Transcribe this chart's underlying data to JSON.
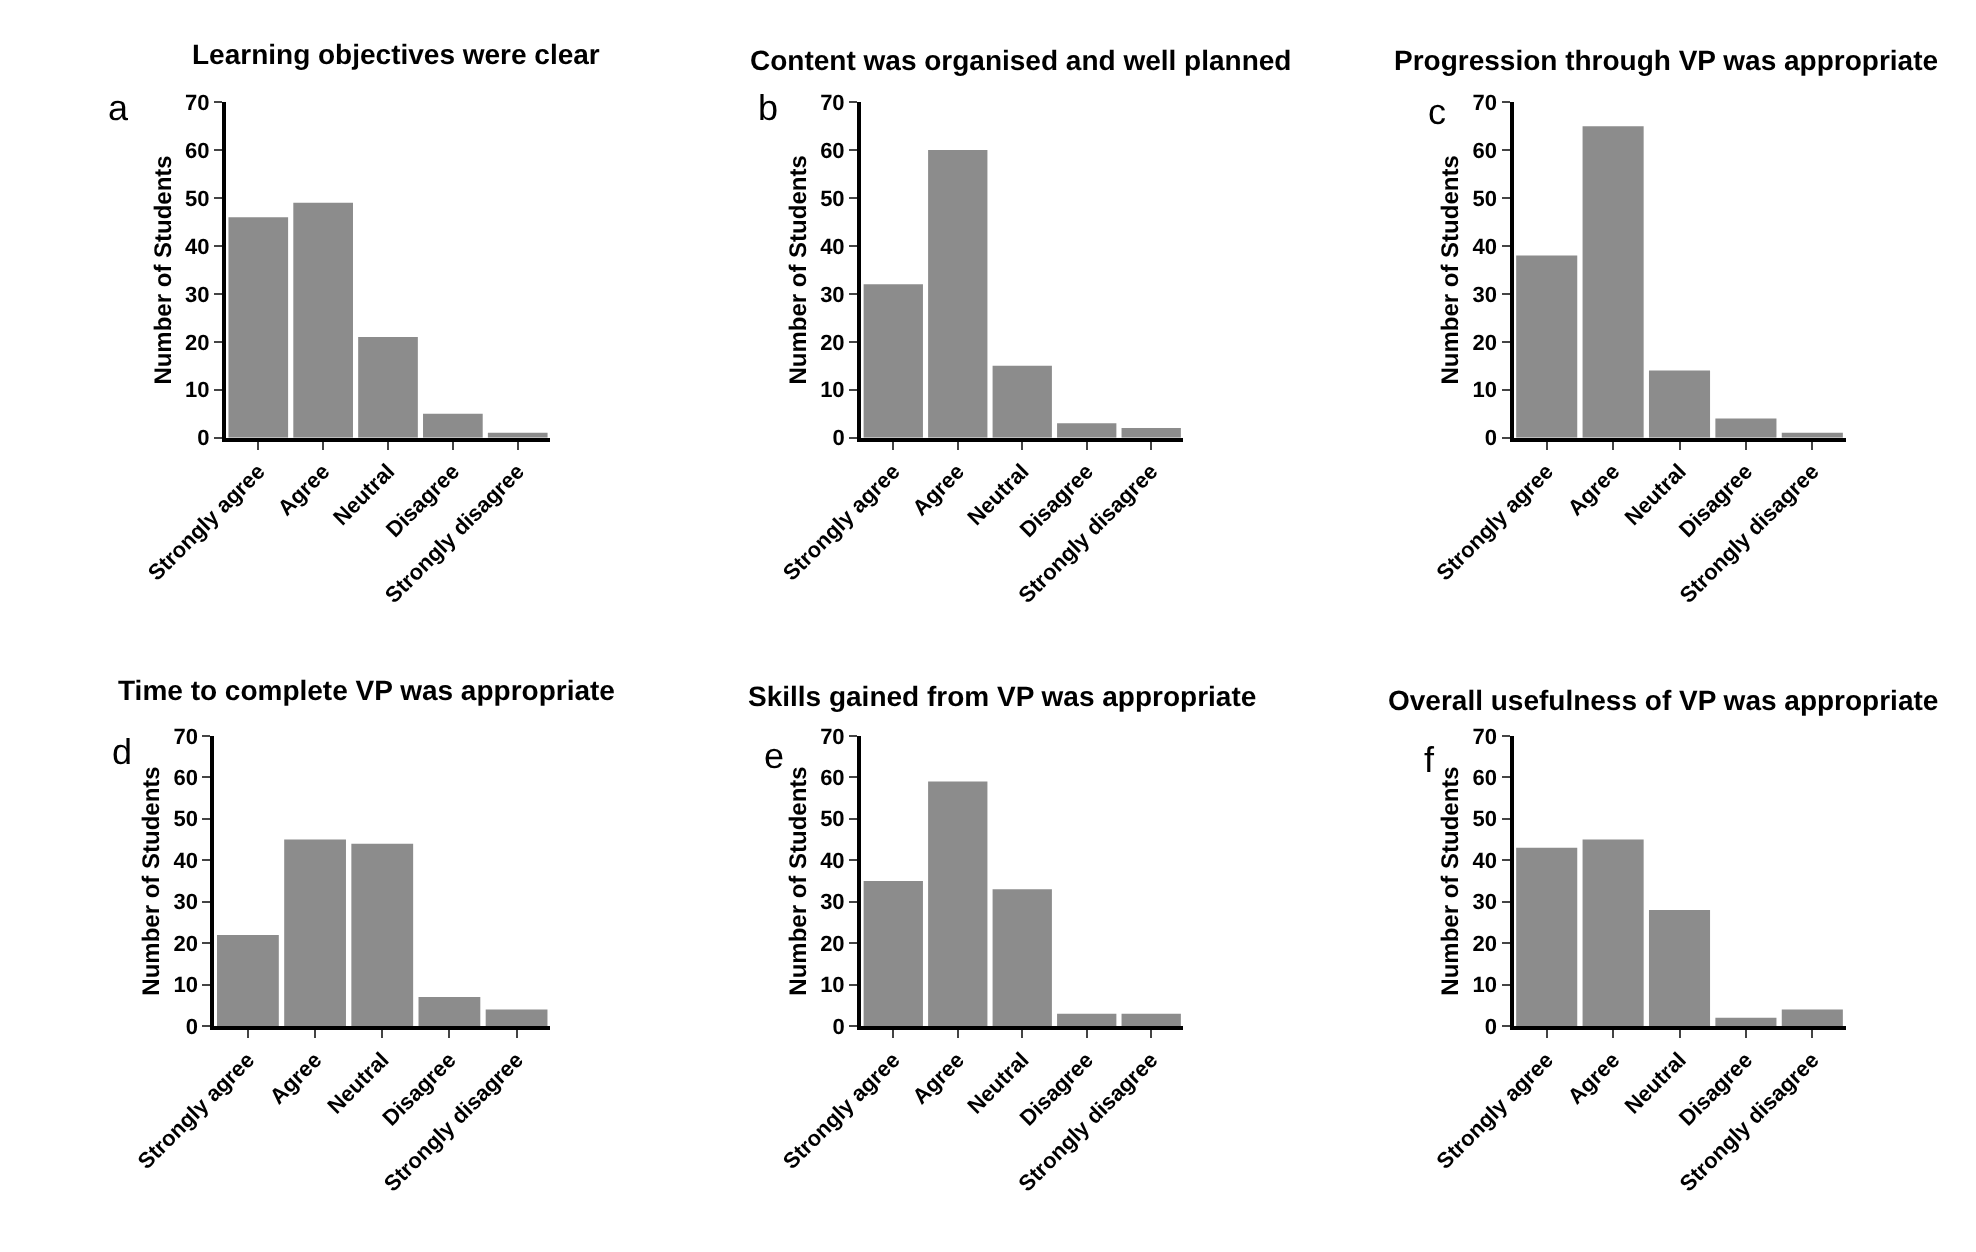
{
  "chart_data": [
    {
      "type": "bar",
      "title": "Learning objectives were clear",
      "ylabel": "Number of Students",
      "categories": [
        "Strongly agree",
        "Agree",
        "Neutral",
        "Disagree",
        "Strongly disagree"
      ],
      "values": [
        46,
        49,
        21,
        5,
        1
      ],
      "color": "#8c8c8c",
      "ylim": [
        0,
        70
      ],
      "yticks": [
        0,
        10,
        20,
        30,
        40,
        50,
        60,
        70
      ],
      "annotations": [
        "a"
      ]
    },
    {
      "type": "bar",
      "title": "Content was organised and well planned",
      "ylabel": "Number of Students",
      "categories": [
        "Strongly agree",
        "Agree",
        "Neutral",
        "Disagree",
        "Strongly disagree"
      ],
      "values": [
        32,
        60,
        15,
        3,
        2
      ],
      "color": "#8c8c8c",
      "ylim": [
        0,
        70
      ],
      "yticks": [
        0,
        10,
        20,
        30,
        40,
        50,
        60,
        70
      ],
      "annotations": [
        "b"
      ]
    },
    {
      "type": "bar",
      "title": "Progression through VP was appropriate",
      "ylabel": "Number of Students",
      "categories": [
        "Strongly agree",
        "Agree",
        "Neutral",
        "Disagree",
        "Strongly disagree"
      ],
      "values": [
        38,
        65,
        14,
        4,
        1
      ],
      "color": "#8c8c8c",
      "ylim": [
        0,
        70
      ],
      "yticks": [
        0,
        10,
        20,
        30,
        40,
        50,
        60,
        70
      ],
      "annotations": [
        "c"
      ]
    },
    {
      "type": "bar",
      "title": "Time to complete VP was appropriate",
      "ylabel": "Number of Students",
      "categories": [
        "Strongly agree",
        "Agree",
        "Neutral",
        "Disagree",
        "Strongly disagree"
      ],
      "values": [
        22,
        45,
        44,
        7,
        4
      ],
      "color": "#8c8c8c",
      "ylim": [
        0,
        70
      ],
      "yticks": [
        0,
        10,
        20,
        30,
        40,
        50,
        60,
        70
      ],
      "annotations": [
        "d"
      ]
    },
    {
      "type": "bar",
      "title": "Skills gained from VP was appropriate",
      "ylabel": "Number of Students",
      "categories": [
        "Strongly agree",
        "Agree",
        "Neutral",
        "Disagree",
        "Strongly disagree"
      ],
      "values": [
        35,
        59,
        33,
        3,
        3
      ],
      "color": "#8c8c8c",
      "ylim": [
        0,
        70
      ],
      "yticks": [
        0,
        10,
        20,
        30,
        40,
        50,
        60,
        70
      ],
      "annotations": [
        "e"
      ]
    },
    {
      "type": "bar",
      "title": "Overall usefulness of VP was appropriate",
      "ylabel": "Number of Students",
      "categories": [
        "Strongly agree",
        "Agree",
        "Neutral",
        "Disagree",
        "Strongly disagree"
      ],
      "values": [
        43,
        45,
        28,
        2,
        4
      ],
      "color": "#8c8c8c",
      "ylim": [
        0,
        70
      ],
      "yticks": [
        0,
        10,
        20,
        30,
        40,
        50,
        60,
        70
      ],
      "annotations": [
        "f"
      ]
    }
  ]
}
